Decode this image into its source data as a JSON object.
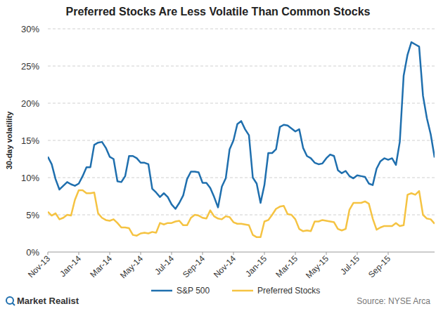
{
  "chart_data": {
    "type": "line",
    "title": "Preferred Stocks Are Less Volatile Than Common Stocks",
    "y_label": "30-day volatility",
    "annotations": [
      "Market Realist",
      "Source: NYSE Arca"
    ],
    "categories": [
      "Nov-13",
      null,
      null,
      null,
      null,
      null,
      null,
      null,
      "Jan-14",
      null,
      null,
      null,
      null,
      null,
      null,
      null,
      "Mar-14",
      null,
      null,
      null,
      null,
      null,
      null,
      null,
      "May-14",
      null,
      null,
      null,
      null,
      null,
      null,
      null,
      "Jul-14",
      null,
      null,
      null,
      null,
      null,
      null,
      null,
      "Sep-14",
      null,
      null,
      null,
      null,
      null,
      null,
      null,
      "Nov-14",
      null,
      null,
      null,
      null,
      null,
      null,
      null,
      "Jan-15",
      null,
      null,
      null,
      null,
      null,
      null,
      null,
      "Mar-15",
      null,
      null,
      null,
      null,
      null,
      null,
      null,
      "May-15",
      null,
      null,
      null,
      null,
      null,
      null,
      null,
      "Jul-15",
      null,
      null,
      null,
      null,
      null,
      null,
      null,
      "Sep-15",
      null,
      null,
      null,
      null,
      null,
      null,
      null,
      null,
      null,
      null,
      null,
      null
    ],
    "series": [
      {
        "name": "S&P 500",
        "color": "#1f6fae",
        "values": [
          12.8,
          11.8,
          9.8,
          8.4,
          8.9,
          9.4,
          9.1,
          8.9,
          9.2,
          10.2,
          11.4,
          11.4,
          14.4,
          14.7,
          14.8,
          14.0,
          12.8,
          12.5,
          9.5,
          9.4,
          10.2,
          12.9,
          12.9,
          12.6,
          12.0,
          12.0,
          11.8,
          8.5,
          8.0,
          7.4,
          7.9,
          7.4,
          6.4,
          5.8,
          6.6,
          7.6,
          9.8,
          10.8,
          10.8,
          10.7,
          9.3,
          9.3,
          8.6,
          7.4,
          6.0,
          8.8,
          9.9,
          13.8,
          15.0,
          17.2,
          17.6,
          16.5,
          15.7,
          10.0,
          9.2,
          6.6,
          9.0,
          13.3,
          13.3,
          13.8,
          16.8,
          17.1,
          17.0,
          16.6,
          16.2,
          16.5,
          14.0,
          12.9,
          12.6,
          12.0,
          11.8,
          11.9,
          12.6,
          13.1,
          12.9,
          11.0,
          10.6,
          10.9,
          10.2,
          9.9,
          10.3,
          10.2,
          10.1,
          9.2,
          9.0,
          11.2,
          12.2,
          12.6,
          12.4,
          12.6,
          11.7,
          14.8,
          23.7,
          26.5,
          28.2,
          27.9,
          27.6,
          21.0,
          18.0,
          15.8,
          12.7
        ]
      },
      {
        "name": "Preferred Stocks",
        "color": "#f5c342",
        "values": [
          5.4,
          4.9,
          5.2,
          4.4,
          4.6,
          5.0,
          4.9,
          7.0,
          8.3,
          8.3,
          7.9,
          7.9,
          8.0,
          5.2,
          4.6,
          4.3,
          4.2,
          4.4,
          3.9,
          3.3,
          3.3,
          3.2,
          2.3,
          2.2,
          2.5,
          2.6,
          2.5,
          2.7,
          2.6,
          3.9,
          3.7,
          3.9,
          3.9,
          4.1,
          4.2,
          3.6,
          3.6,
          4.6,
          5.0,
          4.9,
          4.6,
          4.5,
          5.6,
          4.8,
          4.5,
          4.4,
          4.8,
          4.7,
          4.0,
          3.8,
          3.8,
          3.7,
          3.6,
          2.3,
          2.0,
          2.0,
          4.1,
          4.3,
          5.0,
          5.8,
          6.1,
          6.2,
          5.1,
          5.0,
          4.4,
          3.1,
          2.8,
          2.9,
          2.8,
          4.1,
          4.1,
          4.3,
          4.2,
          4.1,
          4.0,
          3.1,
          2.9,
          3.1,
          5.7,
          6.6,
          6.6,
          6.6,
          6.8,
          6.5,
          4.5,
          3.0,
          3.3,
          3.5,
          3.5,
          3.5,
          3.9,
          3.5,
          3.6,
          7.7,
          7.9,
          7.7,
          8.2,
          5.0,
          4.5,
          4.4,
          3.8
        ]
      }
    ],
    "ylim": [
      0,
      30
    ],
    "yticks": [
      {
        "value": 0,
        "label": "0%"
      },
      {
        "value": 5,
        "label": "5%"
      },
      {
        "value": 10,
        "label": "10%"
      },
      {
        "value": 15,
        "label": "15%"
      },
      {
        "value": 20,
        "label": "20%"
      },
      {
        "value": 25,
        "label": "25%"
      },
      {
        "value": 30,
        "label": "30%"
      }
    ],
    "grid": true,
    "legend": "bottom"
  }
}
